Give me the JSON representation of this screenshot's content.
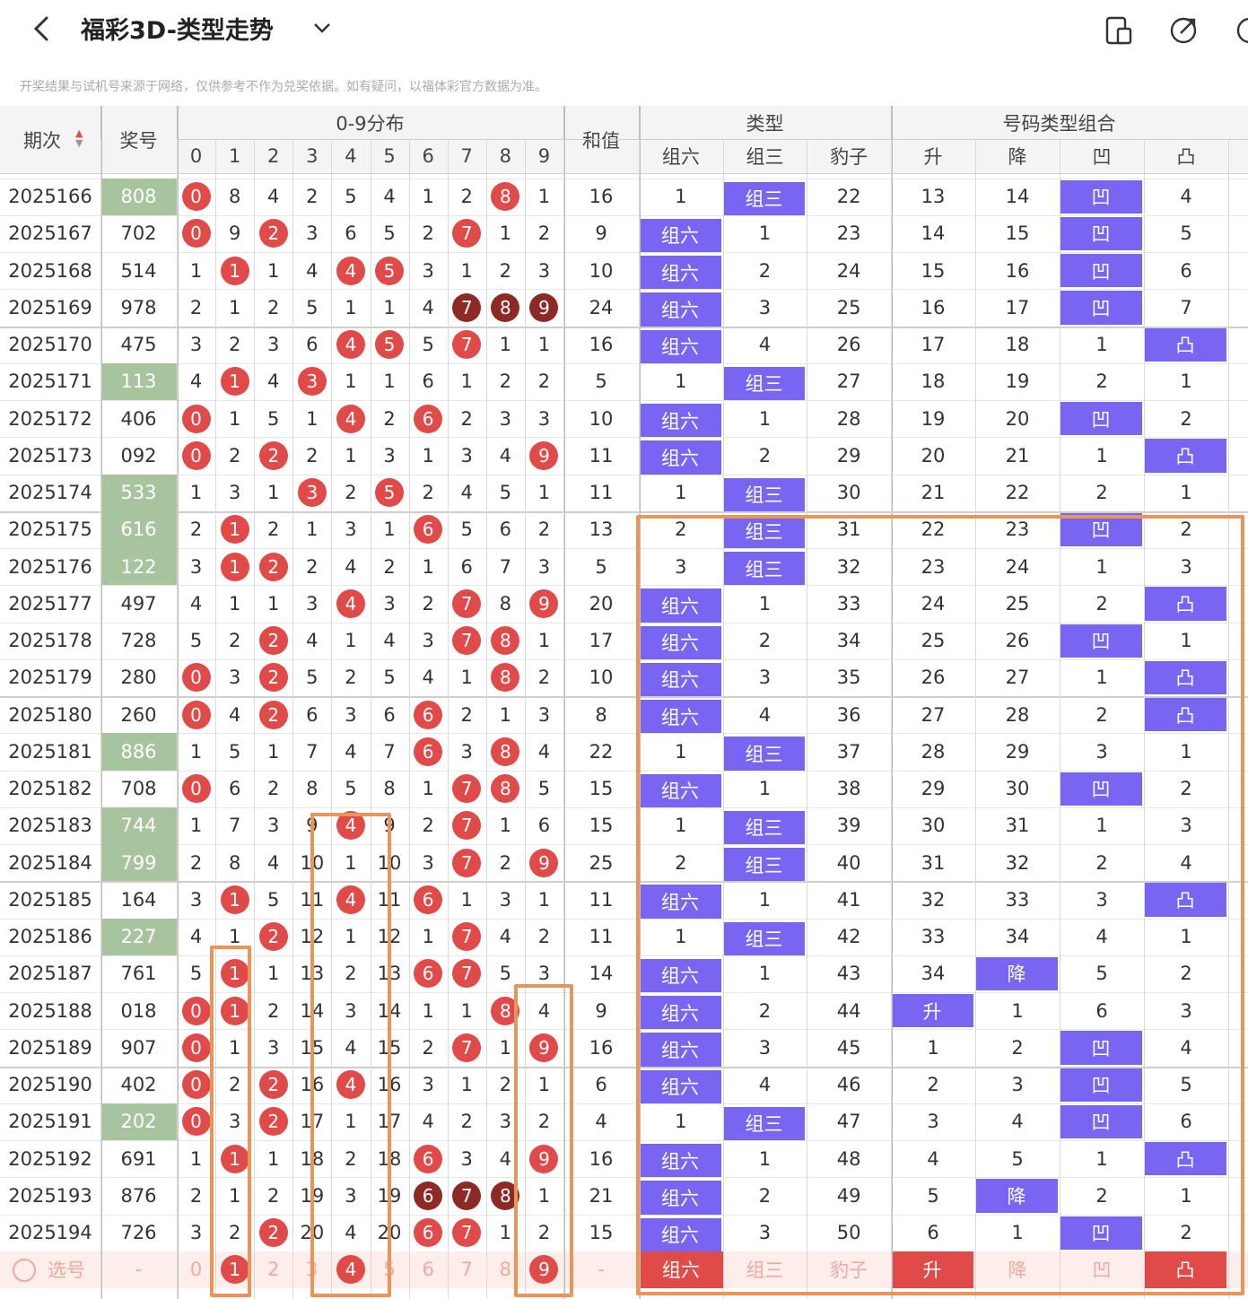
{
  "header": {
    "title": "福彩3D-类型走势",
    "disclaimer": "开奖结果与试机号来源于网络，仅供参考不作为兑奖依据。如有疑问，以福体彩官方数据为准。"
  },
  "table": {
    "columns": {
      "period": "期次",
      "number": "奖号",
      "distribution": "0-9分布",
      "digits": [
        "0",
        "1",
        "2",
        "3",
        "4",
        "5",
        "6",
        "7",
        "8",
        "9"
      ],
      "sum": "和值",
      "type": "类型",
      "types": [
        "组六",
        "组三",
        "豹子"
      ],
      "combo": "号码类型组合",
      "combos": [
        "升",
        "降",
        "凹",
        "凸"
      ]
    },
    "rows": [
      [
        "2025166",
        "808",
        [
          "0",
          "8",
          "4",
          "2",
          "5",
          "4",
          "1",
          "2",
          "8",
          "1"
        ],
        "16",
        [
          "1",
          "组三",
          "22"
        ],
        [
          "13",
          "14",
          "凹",
          "4"
        ]
      ],
      [
        "2025167",
        "702",
        [
          "0",
          "9",
          "2",
          "3",
          "6",
          "5",
          "2",
          "7",
          "1",
          "2"
        ],
        "9",
        [
          "组六",
          "1",
          "23"
        ],
        [
          "14",
          "15",
          "凹",
          "5"
        ]
      ],
      [
        "2025168",
        "514",
        [
          "1",
          "1",
          "1",
          "4",
          "4",
          "5",
          "3",
          "1",
          "2",
          "3"
        ],
        "10",
        [
          "组六",
          "2",
          "24"
        ],
        [
          "15",
          "16",
          "凹",
          "6"
        ]
      ],
      [
        "2025169",
        "978",
        [
          "2",
          "1",
          "2",
          "5",
          "1",
          "1",
          "4",
          "7",
          "8",
          "9"
        ],
        "24",
        [
          "组六",
          "3",
          "25"
        ],
        [
          "16",
          "17",
          "凹",
          "7"
        ]
      ],
      [
        "2025170",
        "475",
        [
          "3",
          "2",
          "3",
          "6",
          "4",
          "5",
          "5",
          "7",
          "1",
          "1"
        ],
        "16",
        [
          "组六",
          "4",
          "26"
        ],
        [
          "17",
          "18",
          "1",
          "凸"
        ]
      ],
      [
        "2025171",
        "113",
        [
          "4",
          "1",
          "4",
          "3",
          "1",
          "1",
          "6",
          "1",
          "2",
          "2"
        ],
        "5",
        [
          "1",
          "组三",
          "27"
        ],
        [
          "18",
          "19",
          "2",
          "1"
        ]
      ],
      [
        "2025172",
        "406",
        [
          "0",
          "1",
          "5",
          "1",
          "4",
          "2",
          "6",
          "2",
          "3",
          "3"
        ],
        "10",
        [
          "组六",
          "1",
          "28"
        ],
        [
          "19",
          "20",
          "凹",
          "2"
        ]
      ],
      [
        "2025173",
        "092",
        [
          "0",
          "2",
          "2",
          "2",
          "1",
          "3",
          "1",
          "3",
          "4",
          "9"
        ],
        "11",
        [
          "组六",
          "2",
          "29"
        ],
        [
          "20",
          "21",
          "1",
          "凸"
        ]
      ],
      [
        "2025174",
        "533",
        [
          "1",
          "3",
          "1",
          "3",
          "2",
          "5",
          "2",
          "4",
          "5",
          "1"
        ],
        "11",
        [
          "1",
          "组三",
          "30"
        ],
        [
          "21",
          "22",
          "2",
          "1"
        ]
      ],
      [
        "2025175",
        "616",
        [
          "2",
          "1",
          "2",
          "1",
          "3",
          "1",
          "6",
          "5",
          "6",
          "2"
        ],
        "13",
        [
          "2",
          "组三",
          "31"
        ],
        [
          "22",
          "23",
          "凹",
          "2"
        ]
      ],
      [
        "2025176",
        "122",
        [
          "3",
          "1",
          "2",
          "2",
          "4",
          "2",
          "1",
          "6",
          "7",
          "3"
        ],
        "5",
        [
          "3",
          "组三",
          "32"
        ],
        [
          "23",
          "24",
          "1",
          "3"
        ]
      ],
      [
        "2025177",
        "497",
        [
          "4",
          "1",
          "1",
          "3",
          "4",
          "3",
          "2",
          "7",
          "8",
          "9"
        ],
        "20",
        [
          "组六",
          "1",
          "33"
        ],
        [
          "24",
          "25",
          "2",
          "凸"
        ]
      ],
      [
        "2025178",
        "728",
        [
          "5",
          "2",
          "2",
          "4",
          "1",
          "4",
          "3",
          "7",
          "8",
          "1"
        ],
        "17",
        [
          "组六",
          "2",
          "34"
        ],
        [
          "25",
          "26",
          "凹",
          "1"
        ]
      ],
      [
        "2025179",
        "280",
        [
          "0",
          "3",
          "2",
          "5",
          "2",
          "5",
          "4",
          "1",
          "8",
          "2"
        ],
        "10",
        [
          "组六",
          "3",
          "35"
        ],
        [
          "26",
          "27",
          "1",
          "凸"
        ]
      ],
      [
        "2025180",
        "260",
        [
          "0",
          "4",
          "2",
          "6",
          "3",
          "6",
          "6",
          "2",
          "1",
          "3"
        ],
        "8",
        [
          "组六",
          "4",
          "36"
        ],
        [
          "27",
          "28",
          "2",
          "凸"
        ]
      ],
      [
        "2025181",
        "886",
        [
          "1",
          "5",
          "1",
          "7",
          "4",
          "7",
          "6",
          "3",
          "8",
          "4"
        ],
        "22",
        [
          "1",
          "组三",
          "37"
        ],
        [
          "28",
          "29",
          "3",
          "1"
        ]
      ],
      [
        "2025182",
        "708",
        [
          "0",
          "6",
          "2",
          "8",
          "5",
          "8",
          "1",
          "7",
          "8",
          "5"
        ],
        "15",
        [
          "组六",
          "1",
          "38"
        ],
        [
          "29",
          "30",
          "凹",
          "2"
        ]
      ],
      [
        "2025183",
        "744",
        [
          "1",
          "7",
          "3",
          "9",
          "4",
          "9",
          "2",
          "7",
          "1",
          "6"
        ],
        "15",
        [
          "1",
          "组三",
          "39"
        ],
        [
          "30",
          "31",
          "1",
          "3"
        ]
      ],
      [
        "2025184",
        "799",
        [
          "2",
          "8",
          "4",
          "10",
          "1",
          "10",
          "3",
          "7",
          "2",
          "9"
        ],
        "25",
        [
          "2",
          "组三",
          "40"
        ],
        [
          "31",
          "32",
          "2",
          "4"
        ]
      ],
      [
        "2025185",
        "164",
        [
          "3",
          "1",
          "5",
          "11",
          "4",
          "11",
          "6",
          "1",
          "3",
          "1"
        ],
        "11",
        [
          "组六",
          "1",
          "41"
        ],
        [
          "32",
          "33",
          "3",
          "凸"
        ]
      ],
      [
        "2025186",
        "227",
        [
          "4",
          "1",
          "2",
          "12",
          "1",
          "12",
          "1",
          "7",
          "4",
          "2"
        ],
        "11",
        [
          "1",
          "组三",
          "42"
        ],
        [
          "33",
          "34",
          "4",
          "1"
        ]
      ],
      [
        "2025187",
        "761",
        [
          "5",
          "1",
          "1",
          "13",
          "2",
          "13",
          "6",
          "7",
          "5",
          "3"
        ],
        "14",
        [
          "组六",
          "1",
          "43"
        ],
        [
          "34",
          "降",
          "5",
          "2"
        ]
      ],
      [
        "2025188",
        "018",
        [
          "0",
          "1",
          "2",
          "14",
          "3",
          "14",
          "1",
          "1",
          "8",
          "4"
        ],
        "9",
        [
          "组六",
          "2",
          "44"
        ],
        [
          "升",
          "1",
          "6",
          "3"
        ]
      ],
      [
        "2025189",
        "907",
        [
          "0",
          "1",
          "3",
          "15",
          "4",
          "15",
          "2",
          "7",
          "1",
          "9"
        ],
        "16",
        [
          "组六",
          "3",
          "45"
        ],
        [
          "1",
          "2",
          "凹",
          "4"
        ]
      ],
      [
        "2025190",
        "402",
        [
          "0",
          "2",
          "2",
          "16",
          "4",
          "16",
          "3",
          "1",
          "2",
          "1"
        ],
        "6",
        [
          "组六",
          "4",
          "46"
        ],
        [
          "2",
          "3",
          "凹",
          "5"
        ]
      ],
      [
        "2025191",
        "202",
        [
          "0",
          "3",
          "2",
          "17",
          "1",
          "17",
          "4",
          "2",
          "3",
          "2"
        ],
        "4",
        [
          "1",
          "组三",
          "47"
        ],
        [
          "3",
          "4",
          "凹",
          "6"
        ]
      ],
      [
        "2025192",
        "691",
        [
          "1",
          "1",
          "1",
          "18",
          "2",
          "18",
          "6",
          "3",
          "4",
          "9"
        ],
        "16",
        [
          "组六",
          "1",
          "48"
        ],
        [
          "4",
          "5",
          "1",
          "凸"
        ]
      ],
      [
        "2025193",
        "876",
        [
          "2",
          "1",
          "2",
          "19",
          "3",
          "19",
          "6",
          "7",
          "8",
          "1"
        ],
        "21",
        [
          "组六",
          "2",
          "49"
        ],
        [
          "5",
          "降",
          "2",
          "1"
        ]
      ],
      [
        "2025194",
        "726",
        [
          "3",
          "2",
          "2",
          "20",
          "4",
          "20",
          "6",
          "7",
          "1",
          "2"
        ],
        "15",
        [
          "组六",
          "3",
          "50"
        ],
        [
          "6",
          "1",
          "凹",
          "2"
        ]
      ]
    ],
    "picker": {
      "label": "选号",
      "number": "-",
      "sum": "-"
    }
  }
}
